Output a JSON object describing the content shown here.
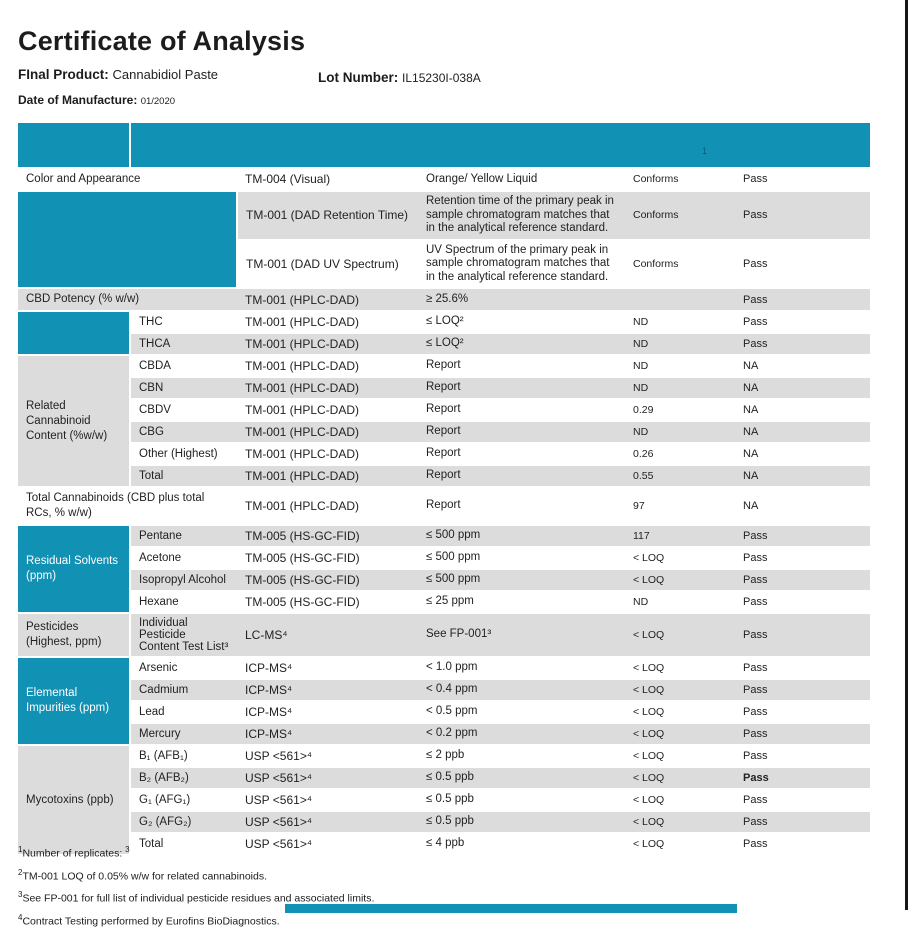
{
  "colors": {
    "accent": "#1191B4",
    "row_shade": "#DCDCDC",
    "edge_line": "#161616"
  },
  "header": {
    "title": "Certificate of Analysis",
    "final_product_label": "FInal Product:",
    "final_product_value": "Cannabidiol Paste",
    "lot_label": "Lot Number:",
    "lot_value": "IL15230I-038A",
    "manufacture_label": "Date of Manufacture:",
    "manufacture_value": "01/2020"
  },
  "table": {
    "header_artifact": "1",
    "rows": [
      {
        "group": {
          "label": "Color and Appearance",
          "style": "plain",
          "colspan": 2
        },
        "method": "TM-004 (Visual)",
        "spec": "Orange/ Yellow Liquid",
        "result": "Conforms",
        "status": "Pass",
        "shade": "white"
      },
      {
        "group": {
          "label": "",
          "style": "teal",
          "colspan": 2,
          "rowspan": 2
        },
        "method": "TM-001 (DAD Retention Time)",
        "spec": "Retention time of the primary peak in sample chromatogram matches that in the analytical reference standard.",
        "result": "Conforms",
        "status": "Pass",
        "shade": "gray"
      },
      {
        "method": "TM-001 (DAD UV Spectrum)",
        "spec": "UV Spectrum of the primary peak in sample chromatogram matches that in the analytical reference standard.",
        "result": "Conforms",
        "status": "Pass",
        "shade": "white"
      },
      {
        "group": {
          "label": "CBD Potency (% w/w)",
          "style": "plain",
          "colspan": 2
        },
        "method": "TM-001 (HPLC-DAD)",
        "spec": "≥ 25.6%",
        "result": "",
        "status": "Pass",
        "shade": "gray"
      },
      {
        "group": {
          "label": "",
          "style": "teal",
          "rowspan": 2
        },
        "sub": "THC",
        "method": "TM-001 (HPLC-DAD)",
        "spec": "≤ LOQ²",
        "result": "ND",
        "status": "Pass",
        "shade": "white"
      },
      {
        "sub": "THCA",
        "method": "TM-001 (HPLC-DAD)",
        "spec": "≤ LOQ²",
        "result": "ND",
        "status": "Pass",
        "shade": "gray"
      },
      {
        "group": {
          "label": "Related Cannabinoid Content (%w/w)",
          "style": "gray",
          "rowspan": 6
        },
        "sub": "CBDA",
        "method": "TM-001 (HPLC-DAD)",
        "spec": "Report",
        "result": "ND",
        "status": "NA",
        "shade": "white"
      },
      {
        "sub": "CBN",
        "method": "TM-001 (HPLC-DAD)",
        "spec": "Report",
        "result": "ND",
        "status": "NA",
        "shade": "gray"
      },
      {
        "sub": "CBDV",
        "method": "TM-001 (HPLC-DAD)",
        "spec": "Report",
        "result": "0.29",
        "status": "NA",
        "shade": "white"
      },
      {
        "sub": "CBG",
        "method": "TM-001 (HPLC-DAD)",
        "spec": "Report",
        "result": "ND",
        "status": "NA",
        "shade": "gray"
      },
      {
        "sub": "Other (Highest)",
        "method": "TM-001 (HPLC-DAD)",
        "spec": "Report",
        "result": "0.26",
        "status": "NA",
        "shade": "white"
      },
      {
        "sub": "Total",
        "method": "TM-001 (HPLC-DAD)",
        "spec": "Report",
        "result": "0.55",
        "status": "NA",
        "shade": "gray"
      },
      {
        "group": {
          "label": "Total Cannabinoids (CBD plus total RCs, % w/w)",
          "style": "plain",
          "colspan": 2
        },
        "method": "TM-001 (HPLC-DAD)",
        "spec": "Report",
        "result": "97",
        "status": "NA",
        "shade": "white"
      },
      {
        "group": {
          "label": "Residual Solvents (ppm)",
          "style": "teal",
          "rowspan": 4
        },
        "sub": "Pentane",
        "method": "TM-005 (HS-GC-FID)",
        "spec": "≤ 500 ppm",
        "result": "117",
        "status": "Pass",
        "shade": "gray"
      },
      {
        "sub": "Acetone",
        "method": "TM-005 (HS-GC-FID)",
        "spec": "≤ 500 ppm",
        "result": "< LOQ",
        "status": "Pass",
        "shade": "white"
      },
      {
        "sub": "Isopropyl Alcohol",
        "method": "TM-005 (HS-GC-FID)",
        "spec": "≤ 500 ppm",
        "result": "< LOQ",
        "status": "Pass",
        "shade": "gray"
      },
      {
        "sub": "Hexane",
        "method": "TM-005 (HS-GC-FID)",
        "spec": "≤ 25 ppm",
        "result": "ND",
        "status": "Pass",
        "shade": "white"
      },
      {
        "group": {
          "label": "Pesticides (Highest, ppm)",
          "style": "gray"
        },
        "sub": "Individual Pesticide Content Test List³",
        "method": "LC-MS⁴",
        "spec": "See FP-001³",
        "result": "< LOQ",
        "status": "Pass",
        "shade": "gray"
      },
      {
        "group": {
          "label": "Elemental Impurities (ppm)",
          "style": "teal",
          "rowspan": 4
        },
        "sub": "Arsenic",
        "method": "ICP-MS⁴",
        "spec": "< 1.0 ppm",
        "result": "< LOQ",
        "status": "Pass",
        "shade": "white"
      },
      {
        "sub": "Cadmium",
        "method": "ICP-MS⁴",
        "spec": "< 0.4 ppm",
        "result": "< LOQ",
        "status": "Pass",
        "shade": "gray"
      },
      {
        "sub": "Lead",
        "method": "ICP-MS⁴",
        "spec": "< 0.5 ppm",
        "result": "< LOQ",
        "status": "Pass",
        "shade": "white"
      },
      {
        "sub": "Mercury",
        "method": "ICP-MS⁴",
        "spec": "< 0.2 ppm",
        "result": "< LOQ",
        "status": "Pass",
        "shade": "gray"
      },
      {
        "group": {
          "label": "Mycotoxins (ppb)",
          "style": "gray",
          "rowspan": 5
        },
        "sub": "B₁ (AFB₁)",
        "method": "USP <561>⁴",
        "spec": "≤ 2 ppb",
        "result": "< LOQ",
        "status": "Pass",
        "shade": "white"
      },
      {
        "sub": "B₂ (AFB₂)",
        "method": "USP <561>⁴",
        "spec": "≤ 0.5 ppb",
        "result": "< LOQ",
        "status": "Pass",
        "shade": "gray",
        "bold_status": true
      },
      {
        "sub": "G₁ (AFG₁)",
        "method": "USP <561>⁴",
        "spec": "≤ 0.5 ppb",
        "result": "< LOQ",
        "status": "Pass",
        "shade": "white"
      },
      {
        "sub": "G₂ (AFG₂)",
        "method": "USP <561>⁴",
        "spec": "≤ 0.5 ppb",
        "result": "< LOQ",
        "status": "Pass",
        "shade": "gray"
      },
      {
        "sub": "Total",
        "method": "USP <561>⁴",
        "spec": "≤ 4 ppb",
        "result": "< LOQ",
        "status": "Pass",
        "shade": "white"
      }
    ]
  },
  "footnotes": [
    {
      "marker": "1",
      "text": "Number of replicates: ",
      "tail": "3"
    },
    {
      "marker": "2",
      "text": "TM-001 LOQ of 0.05% w/w for related cannabinoids.",
      "tail": ""
    },
    {
      "marker": "3",
      "text": "See FP-001 for full list of individual pesticide residues and associated limits.",
      "tail": ""
    },
    {
      "marker": "4",
      "text": "Contract Testing performed by Eurofins BioDiagnostics.",
      "tail": ""
    }
  ]
}
